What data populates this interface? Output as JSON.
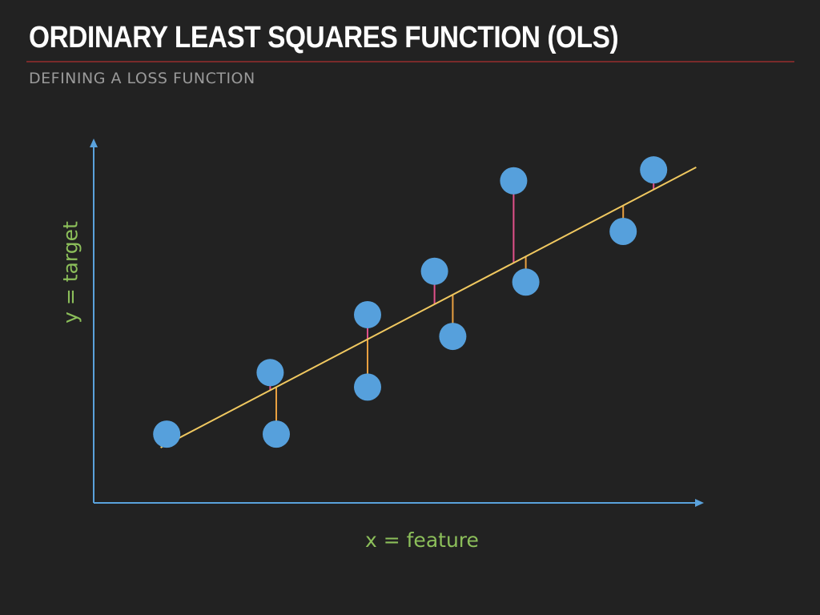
{
  "slide": {
    "title": "ORDINARY LEAST SQUARES FUNCTION (OLS)",
    "subtitle": "DEFINING A LOSS FUNCTION"
  },
  "axes": {
    "x_label": "x = feature",
    "y_label": "y = target"
  },
  "colors": {
    "background": "#222222",
    "axis": "#5aa2dc",
    "axis_label": "#8cbf5a",
    "regression_line": "#f0c860",
    "point": "#56a0dc",
    "residual_above": "#e0508a",
    "residual_below": "#e8a040"
  },
  "chart_data": {
    "type": "scatter",
    "points_above_line": [
      {
        "x": 0.12,
        "y": 0.19
      },
      {
        "x": 0.29,
        "y": 0.36
      },
      {
        "x": 0.45,
        "y": 0.52
      },
      {
        "x": 0.56,
        "y": 0.64
      },
      {
        "x": 0.69,
        "y": 0.89
      },
      {
        "x": 0.92,
        "y": 0.92
      }
    ],
    "points_below_line": [
      {
        "x": 0.3,
        "y": 0.19
      },
      {
        "x": 0.45,
        "y": 0.32
      },
      {
        "x": 0.59,
        "y": 0.46
      },
      {
        "x": 0.71,
        "y": 0.61
      },
      {
        "x": 0.87,
        "y": 0.75
      }
    ],
    "fit_line": {
      "slope": 0.88,
      "intercept": 0.056,
      "x_start": 0.11,
      "x_end": 0.99
    },
    "residuals": "vertical segments from each point to the fitted line",
    "grid": false,
    "legend": "none"
  }
}
